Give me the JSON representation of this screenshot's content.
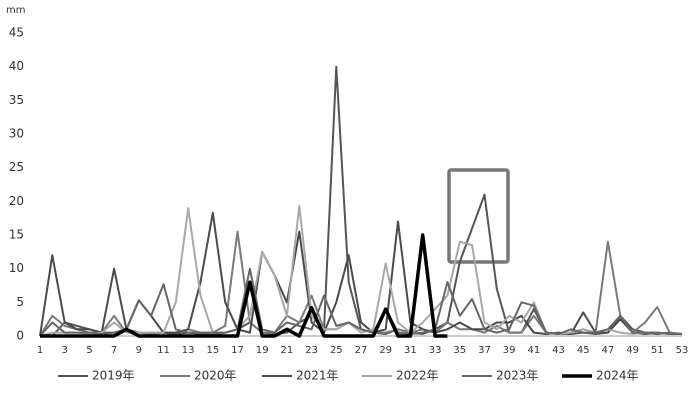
{
  "chart_data": {
    "type": "line",
    "y_label": "mm",
    "categories": [
      "1",
      null,
      "3",
      null,
      "5",
      null,
      "7",
      null,
      "9",
      null,
      "11",
      null,
      "13",
      null,
      "15",
      null,
      "17",
      null,
      "19",
      null,
      "21",
      null,
      "23",
      null,
      "25",
      null,
      "27",
      null,
      "29",
      null,
      "31",
      null,
      "33",
      null,
      "35",
      null,
      "37",
      null,
      "39",
      null,
      "41",
      null,
      "43",
      null,
      "45",
      null,
      "47",
      null,
      "49",
      null,
      "51",
      null,
      "53"
    ],
    "ylim": [
      0,
      45
    ],
    "yticks": [
      0,
      5,
      10,
      15,
      20,
      25,
      30,
      35,
      40,
      45
    ],
    "legend": "bottom",
    "series": [
      {
        "name": "2019年",
        "color": "#555555",
        "width": 2,
        "values": [
          0,
          0,
          2,
          1.5,
          1,
          0.5,
          0.5,
          1,
          0.5,
          0.3,
          0.5,
          0.3,
          0.5,
          0.3,
          0.2,
          0.5,
          1,
          2,
          0.5,
          0.3,
          0.5,
          2,
          3,
          1,
          40,
          8,
          1,
          0.5,
          0.3,
          1,
          0.5,
          0.3,
          1,
          2,
          11,
          16,
          21,
          7,
          0.5,
          0.5,
          4,
          0.5,
          0.3,
          0.3,
          0.5,
          0.3,
          0.5,
          3,
          1,
          0.5,
          0.3,
          0.5,
          0.3
        ]
      },
      {
        "name": "2020年",
        "color": "#7a7a7a",
        "width": 2,
        "values": [
          0,
          3,
          1.5,
          1,
          0.5,
          0.5,
          3,
          0.5,
          0.5,
          0.5,
          0.5,
          0.5,
          1,
          0.5,
          0.5,
          1.5,
          15.5,
          2,
          0.5,
          0.5,
          3,
          2,
          6,
          1,
          1,
          2,
          1,
          0.5,
          0.5,
          1,
          0.5,
          1,
          0.5,
          2,
          1,
          1,
          0.5,
          1.5,
          0.5,
          0.5,
          3,
          0.5,
          0.3,
          0.5,
          1,
          0.5,
          14,
          3,
          0.5,
          2,
          4.3,
          0.5,
          0.3
        ]
      },
      {
        "name": "2021年",
        "color": "#4a4a4a",
        "width": 2,
        "values": [
          0,
          12,
          2,
          1,
          1,
          0.5,
          10,
          1,
          5.3,
          3,
          0.5,
          0.5,
          1,
          8,
          18.3,
          5,
          1,
          0.5,
          12.5,
          9,
          5,
          15.5,
          2,
          0.5,
          5,
          12,
          2,
          0.5,
          1,
          17,
          2,
          1,
          0.5,
          1,
          2,
          1,
          1,
          2,
          2,
          3,
          0.5,
          0.3,
          0.5,
          0.3,
          3.5,
          0.5,
          0.5,
          2.5,
          0.5,
          0.3,
          0.5,
          0.3,
          0.3
        ]
      },
      {
        "name": "2022年",
        "color": "#a8a8a8",
        "width": 2,
        "values": [
          0,
          0.5,
          0.5,
          0.5,
          0.3,
          0.5,
          2,
          0.5,
          0.5,
          0.5,
          0.5,
          5,
          19,
          6,
          0.5,
          0.5,
          1,
          3,
          12.5,
          9,
          3,
          19.3,
          3,
          1,
          1,
          2,
          0.5,
          1,
          10.8,
          2,
          0.5,
          2,
          4,
          6,
          14,
          13.5,
          2,
          1,
          3,
          2,
          5,
          0.5,
          0.3,
          0.5,
          1,
          0.5,
          1,
          0.5,
          0.3,
          0.5,
          0.5,
          0.3,
          0.3
        ]
      },
      {
        "name": "2023年",
        "color": "#666666",
        "width": 2,
        "values": [
          0,
          2,
          0.5,
          0.5,
          0.5,
          0.3,
          0.5,
          1,
          5.3,
          3,
          7.7,
          1,
          0.5,
          0.5,
          0.5,
          0.5,
          1,
          10,
          1,
          0.5,
          2,
          1.5,
          1,
          6,
          1.5,
          2,
          1,
          0.5,
          4,
          0.5,
          0.3,
          0.5,
          1,
          8,
          3,
          5.5,
          1,
          0.5,
          1,
          5,
          4.5,
          0.5,
          0.3,
          1,
          0.5,
          0.5,
          1,
          3,
          0.5,
          0.5,
          0.5,
          0.3,
          0.3
        ]
      },
      {
        "name": "2024年",
        "color": "#000000",
        "width": 3.5,
        "values": [
          0,
          0,
          0,
          0,
          0,
          0,
          0,
          1,
          0,
          0,
          0,
          0,
          0,
          0,
          0,
          0,
          0,
          8,
          0,
          0,
          1,
          0,
          4.2,
          0,
          0,
          0,
          0,
          0,
          4,
          0,
          0,
          15,
          0,
          0,
          null,
          null,
          null,
          null,
          null,
          null,
          null,
          null,
          null,
          null,
          null,
          null,
          null,
          null,
          null,
          null,
          null,
          null,
          null
        ]
      }
    ]
  }
}
